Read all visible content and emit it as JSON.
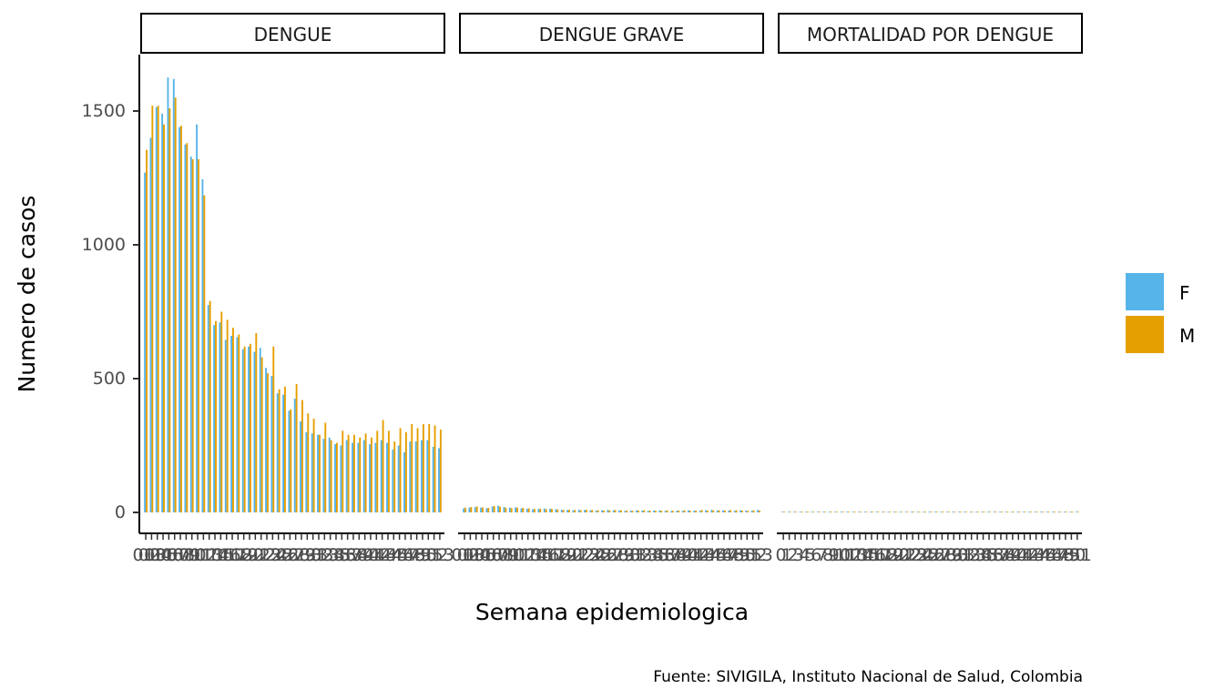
{
  "chart_data": {
    "type": "bar",
    "ylabel": "Numero de casos",
    "xlabel": "Semana epidemiologica",
    "caption": "Fuente: SIVIGILA, Instituto Nacional de Salud, Colombia",
    "ylim": [
      0,
      1700
    ],
    "yticks": [
      0,
      500,
      1000,
      1500
    ],
    "legend_position": "right",
    "colors": {
      "F": "#56B4E9",
      "M": "#E69F00"
    },
    "legend": [
      {
        "key": "F",
        "label": "F"
      },
      {
        "key": "M",
        "label": "M"
      }
    ],
    "facets": [
      {
        "title": "DENGUE",
        "x": [
          1,
          2,
          3,
          4,
          5,
          6,
          7,
          8,
          9,
          10,
          11,
          12,
          13,
          14,
          15,
          16,
          17,
          18,
          19,
          20,
          21,
          22,
          23,
          24,
          25,
          26,
          27,
          28,
          29,
          30,
          31,
          32,
          33,
          34,
          35,
          36,
          37,
          38,
          39,
          40,
          41,
          42,
          43,
          44,
          45,
          46,
          47,
          48,
          49,
          50,
          51,
          52
        ],
        "xtick_labels": [
          "01",
          "02",
          "03",
          "04",
          "05",
          "06",
          "07",
          "08",
          "09",
          "10",
          "11",
          "12",
          "13",
          "14",
          "15",
          "16",
          "17",
          "18",
          "19",
          "20",
          "21",
          "22",
          "23",
          "24",
          "25",
          "26",
          "27",
          "28",
          "29",
          "30",
          "31",
          "32",
          "33",
          "34",
          "35",
          "36",
          "37",
          "38",
          "39",
          "40",
          "41",
          "42",
          "43",
          "44",
          "45",
          "46",
          "47",
          "48",
          "49",
          "50",
          "51",
          "52",
          "53"
        ],
        "series": [
          {
            "name": "F",
            "values": [
              1270,
              1400,
              1515,
              1490,
              1625,
              1620,
              1440,
              1375,
              1330,
              1450,
              1245,
              775,
              700,
              710,
              645,
              660,
              655,
              610,
              620,
              600,
              615,
              540,
              510,
              445,
              440,
              380,
              425,
              340,
              300,
              295,
              290,
              275,
              280,
              255,
              250,
              270,
              260,
              260,
              270,
              255,
              260,
              270,
              260,
              235,
              250,
              225,
              265,
              265,
              270,
              270,
              245,
              240
            ]
          },
          {
            "name": "M",
            "values": [
              1355,
              1520,
              1520,
              1450,
              1510,
              1550,
              1445,
              1380,
              1320,
              1320,
              1185,
              790,
              715,
              750,
              720,
              690,
              665,
              620,
              630,
              670,
              580,
              520,
              620,
              460,
              470,
              385,
              480,
              420,
              370,
              350,
              290,
              335,
              270,
              260,
              305,
              290,
              290,
              280,
              295,
              280,
              305,
              345,
              305,
              265,
              315,
              300,
              330,
              315,
              330,
              330,
              325,
              310
            ]
          }
        ]
      },
      {
        "title": "DENGUE GRAVE",
        "x": [
          1,
          2,
          3,
          4,
          5,
          6,
          7,
          8,
          9,
          10,
          11,
          12,
          13,
          14,
          15,
          16,
          17,
          18,
          19,
          20,
          21,
          22,
          23,
          24,
          25,
          26,
          27,
          28,
          29,
          30,
          31,
          32,
          33,
          34,
          35,
          36,
          37,
          38,
          39,
          40,
          41,
          42,
          43,
          44,
          45,
          46,
          47,
          48,
          49,
          50,
          51,
          52
        ],
        "xtick_labels": [
          "01",
          "02",
          "03",
          "04",
          "05",
          "06",
          "07",
          "08",
          "09",
          "10",
          "11",
          "12",
          "13",
          "14",
          "15",
          "16",
          "17",
          "18",
          "19",
          "20",
          "21",
          "22",
          "23",
          "24",
          "25",
          "26",
          "27",
          "28",
          "29",
          "30",
          "31",
          "32",
          "33",
          "34",
          "35",
          "36",
          "37",
          "38",
          "39",
          "40",
          "41",
          "42",
          "43",
          "44",
          "45",
          "46",
          "47",
          "48",
          "49",
          "50",
          "51",
          "52",
          "53"
        ],
        "series": [
          {
            "name": "F",
            "values": [
              15,
              18,
              20,
              18,
              16,
              22,
              25,
              20,
              18,
              19,
              15,
              14,
              12,
              13,
              15,
              14,
              12,
              10,
              9,
              8,
              10,
              9,
              8,
              7,
              8,
              9,
              8,
              7,
              6,
              7,
              8,
              7,
              6,
              7,
              8,
              6,
              5,
              7,
              6,
              8,
              7,
              6,
              8,
              9,
              7,
              8,
              7,
              6,
              8,
              7,
              6,
              9
            ]
          },
          {
            "name": "M",
            "values": [
              18,
              20,
              22,
              19,
              17,
              24,
              22,
              18,
              16,
              18,
              17,
              15,
              13,
              14,
              12,
              13,
              11,
              9,
              10,
              9,
              8,
              10,
              9,
              8,
              7,
              8,
              9,
              8,
              7,
              6,
              7,
              8,
              7,
              6,
              7,
              8,
              6,
              7,
              8,
              6,
              7,
              9,
              7,
              8,
              8,
              7,
              9,
              8,
              7,
              6,
              8,
              7
            ]
          }
        ]
      },
      {
        "title": "MORTALIDAD POR DENGUE",
        "x": [
          1,
          2,
          3,
          4,
          5,
          6,
          7,
          8,
          9,
          10,
          11,
          12,
          13,
          14,
          15,
          16,
          17,
          18,
          19,
          20,
          21,
          22,
          23,
          24,
          25,
          26,
          27,
          28,
          29,
          30,
          31,
          32,
          33,
          34,
          35,
          36,
          37,
          38,
          39,
          40,
          41,
          42,
          43,
          44,
          45,
          46,
          47,
          48,
          49,
          50,
          51
        ],
        "xtick_labels": [
          "0",
          "1",
          "2",
          "3",
          "4",
          "5",
          "6",
          "7",
          "8",
          "9",
          "10",
          "11",
          "12",
          "13",
          "14",
          "15",
          "16",
          "17",
          "18",
          "19",
          "20",
          "21",
          "22",
          "23",
          "24",
          "25",
          "26",
          "27",
          "28",
          "29",
          "30",
          "31",
          "32",
          "33",
          "34",
          "35",
          "36",
          "37",
          "38",
          "39",
          "40",
          "41",
          "42",
          "43",
          "44",
          "45",
          "46",
          "47",
          "48",
          "49",
          "50",
          "51"
        ],
        "series": [
          {
            "name": "F",
            "values": [
              1,
              1,
              2,
              1,
              1,
              2,
              1,
              1,
              0,
              1,
              1,
              0,
              1,
              0,
              1,
              1,
              0,
              1,
              0,
              0,
              1,
              0,
              1,
              0,
              0,
              1,
              0,
              0,
              1,
              0,
              0,
              1,
              0,
              0,
              0,
              1,
              0,
              0,
              1,
              0,
              0,
              0,
              1,
              0,
              1,
              0,
              0,
              1,
              0,
              0,
              1
            ]
          },
          {
            "name": "M",
            "values": [
              1,
              2,
              1,
              1,
              2,
              1,
              1,
              1,
              1,
              0,
              1,
              1,
              0,
              1,
              0,
              1,
              1,
              0,
              1,
              1,
              0,
              1,
              0,
              1,
              1,
              0,
              1,
              0,
              0,
              1,
              1,
              0,
              1,
              0,
              1,
              0,
              0,
              1,
              0,
              1,
              0,
              1,
              0,
              1,
              0,
              1,
              1,
              0,
              0,
              1,
              0
            ]
          }
        ]
      }
    ]
  }
}
